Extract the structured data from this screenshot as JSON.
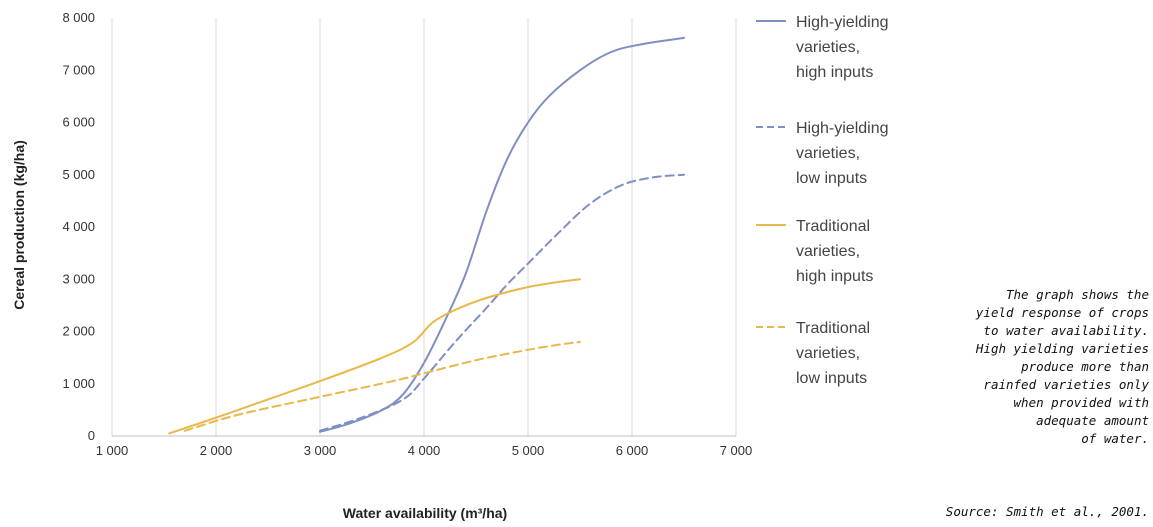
{
  "chart_data": {
    "type": "line",
    "xlabel": "Water availability (m³/ha)",
    "ylabel": "Cereal production (kg/ha)",
    "xlim": [
      1000,
      7000
    ],
    "ylim": [
      0,
      8000
    ],
    "x_ticks": [
      1000,
      2000,
      3000,
      4000,
      5000,
      6000,
      7000
    ],
    "y_ticks": [
      0,
      1000,
      2000,
      3000,
      4000,
      5000,
      6000,
      7000,
      8000
    ],
    "x_tick_labels": [
      "1 000",
      "2 000",
      "3 000",
      "4 000",
      "5 000",
      "6 000",
      "7 000"
    ],
    "y_tick_labels": [
      "0",
      "1 000",
      "2 000",
      "3 000",
      "4 000",
      "5 000",
      "6 000",
      "7 000",
      "8 000"
    ],
    "grid": "vertical",
    "legend_position": "right",
    "series": [
      {
        "name": "High-yielding varieties, high inputs",
        "legend_lines": [
          "High-yielding",
          "varieties,",
          "high inputs"
        ],
        "color": "#7f8fc4",
        "dash": "solid",
        "points": [
          [
            3000,
            80
          ],
          [
            3300,
            250
          ],
          [
            3600,
            500
          ],
          [
            3800,
            800
          ],
          [
            4000,
            1400
          ],
          [
            4200,
            2200
          ],
          [
            4400,
            3100
          ],
          [
            4600,
            4300
          ],
          [
            4800,
            5300
          ],
          [
            5000,
            6000
          ],
          [
            5200,
            6500
          ],
          [
            5500,
            7000
          ],
          [
            5800,
            7350
          ],
          [
            6100,
            7500
          ],
          [
            6500,
            7620
          ]
        ]
      },
      {
        "name": "High-yielding varieties, low inputs",
        "legend_lines": [
          "High-yielding",
          "varieties,",
          "low inputs"
        ],
        "color": "#7f8fc4",
        "dash": "dashed",
        "points": [
          [
            3000,
            100
          ],
          [
            3400,
            350
          ],
          [
            3800,
            700
          ],
          [
            4000,
            1100
          ],
          [
            4300,
            1800
          ],
          [
            4600,
            2450
          ],
          [
            4800,
            2900
          ],
          [
            5000,
            3300
          ],
          [
            5300,
            3900
          ],
          [
            5600,
            4450
          ],
          [
            5900,
            4800
          ],
          [
            6200,
            4950
          ],
          [
            6500,
            5000
          ]
        ]
      },
      {
        "name": "Traditional varieties, high inputs",
        "legend_lines": [
          "Traditional",
          "varieties,",
          "high inputs"
        ],
        "color": "#e8b84a",
        "dash": "solid",
        "points": [
          [
            1550,
            50
          ],
          [
            2000,
            350
          ],
          [
            2500,
            700
          ],
          [
            3000,
            1050
          ],
          [
            3600,
            1500
          ],
          [
            3900,
            1800
          ],
          [
            4100,
            2200
          ],
          [
            4400,
            2500
          ],
          [
            4700,
            2700
          ],
          [
            5000,
            2850
          ],
          [
            5300,
            2950
          ],
          [
            5500,
            3000
          ]
        ]
      },
      {
        "name": "Traditional varieties, low inputs",
        "legend_lines": [
          "Traditional",
          "varieties,",
          "low inputs"
        ],
        "color": "#e8b84a",
        "dash": "dashed",
        "points": [
          [
            1700,
            100
          ],
          [
            2200,
            400
          ],
          [
            3000,
            750
          ],
          [
            3700,
            1050
          ],
          [
            4000,
            1200
          ],
          [
            4500,
            1450
          ],
          [
            5000,
            1650
          ],
          [
            5300,
            1750
          ],
          [
            5500,
            1800
          ]
        ]
      }
    ]
  },
  "annotation": {
    "lines": [
      "The graph shows the",
      "yield response of crops",
      "to water availability.",
      "High yielding varieties",
      "produce more than",
      "rainfed varieties only",
      "when provided with",
      "adequate amount",
      "of water."
    ]
  },
  "source": "Source: Smith et al., 2001."
}
